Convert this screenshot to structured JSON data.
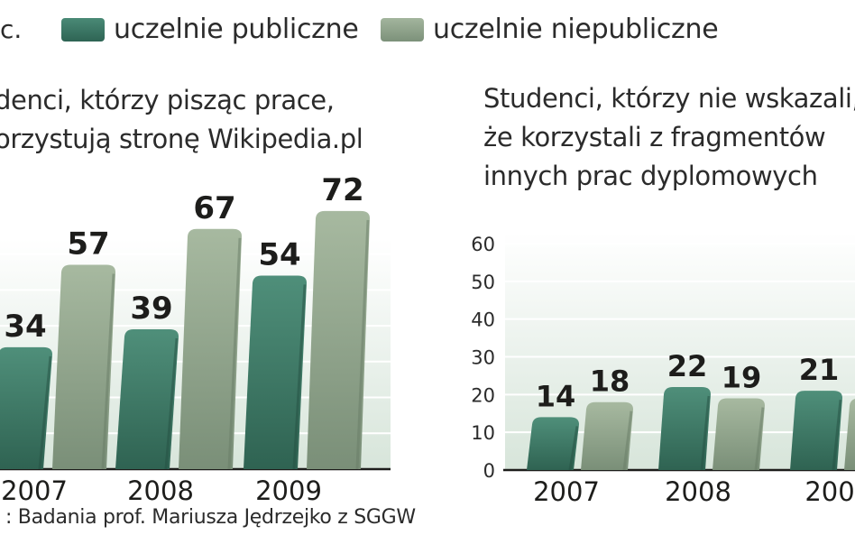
{
  "legend": {
    "unit": "c.",
    "public": "uczelnie publiczne",
    "private": "uczelnie niepubliczne"
  },
  "colors": {
    "public": "#3d7866",
    "private": "#8fa38a",
    "plot_bg": "#dfe9e1",
    "text": "#1d1d1b"
  },
  "chart_data": [
    {
      "type": "bar",
      "title": "denci, którzy pisząc prace,\norzystują stronę Wikipedia.pl",
      "categories": [
        "2007",
        "2008",
        "2009"
      ],
      "series": [
        {
          "name": "uczelnie publiczne",
          "values": [
            34,
            39,
            54
          ]
        },
        {
          "name": "uczelnie niepubliczne",
          "values": [
            57,
            67,
            72
          ]
        }
      ],
      "ylim": [
        0,
        75
      ],
      "data_labels": true
    },
    {
      "type": "bar",
      "title": "Studenci, którzy nie wskazali,\nże korzystali z fragmentów\ninnych prac dyplomowych",
      "categories": [
        "2007",
        "2008",
        "200"
      ],
      "series": [
        {
          "name": "uczelnie publiczne",
          "values": [
            14,
            22,
            21
          ]
        },
        {
          "name": "uczelnie niepubliczne",
          "values": [
            18,
            19,
            19
          ]
        }
      ],
      "yticks": [
        "0",
        "10",
        "20",
        "30",
        "40",
        "50",
        "60"
      ],
      "ylim": [
        0,
        60
      ],
      "data_labels": true
    }
  ],
  "source": ": Badania prof. Mariusza Jędrzejko z SGGW"
}
